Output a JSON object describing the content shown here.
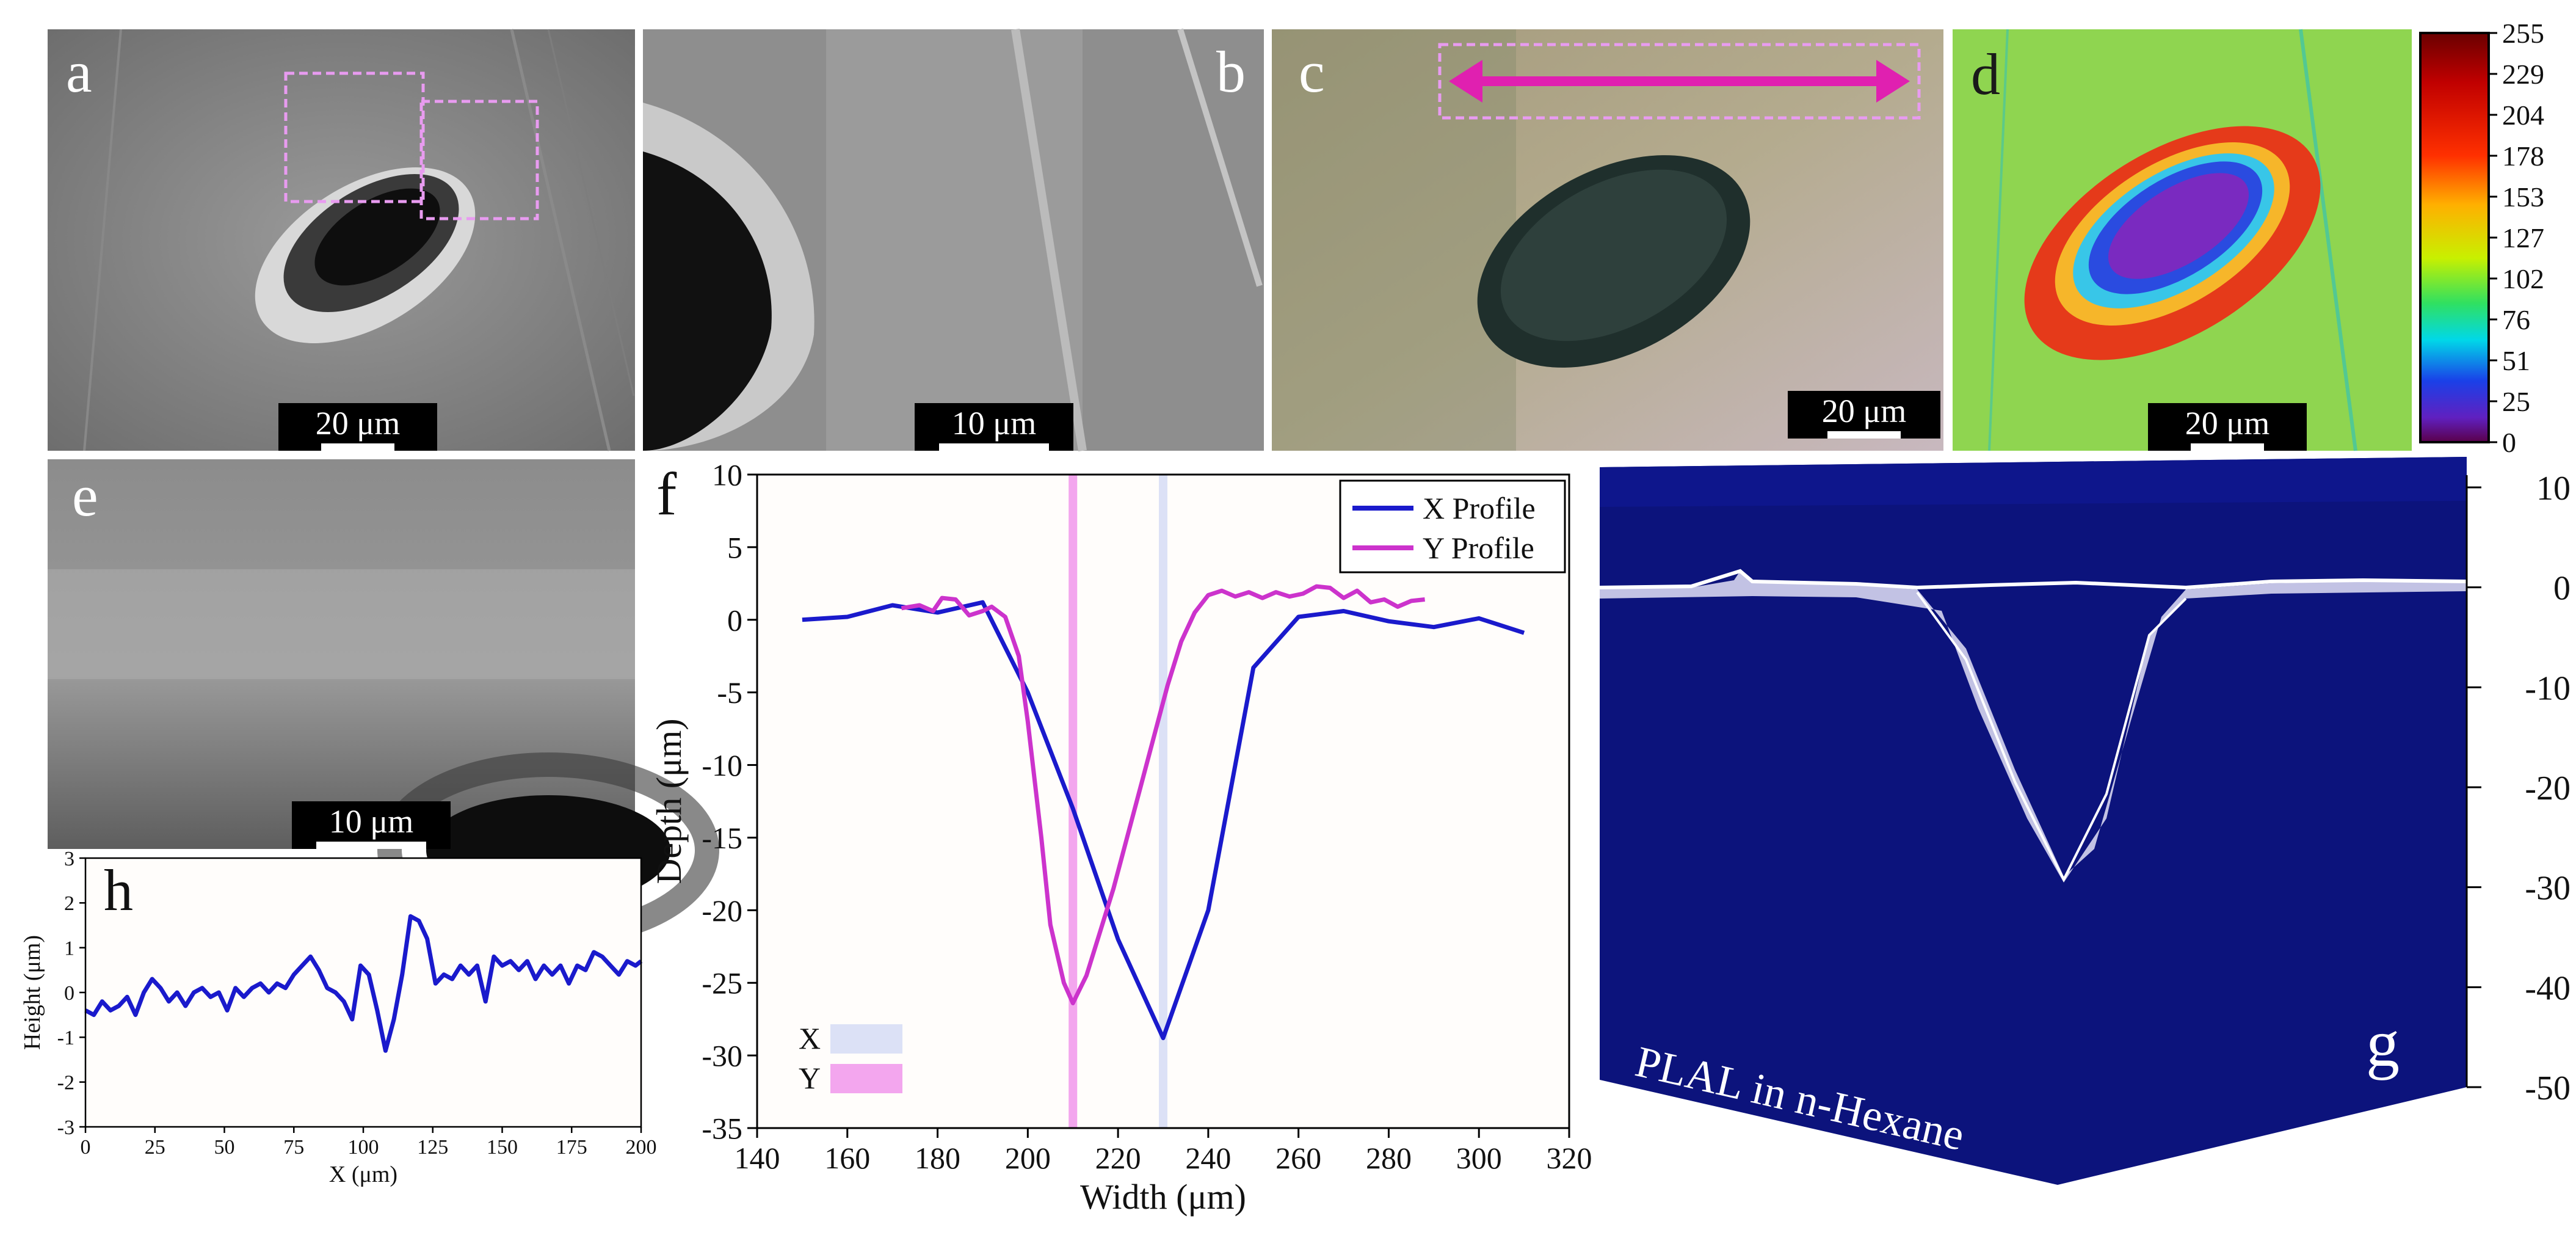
{
  "panels": {
    "a": {
      "label": "a",
      "scale": "20 μm"
    },
    "b": {
      "label": "b",
      "scale": "10 μm"
    },
    "c": {
      "label": "c",
      "scale": "20 μm"
    },
    "d": {
      "label": "d",
      "scale": "20 μm",
      "colorbar_ticks": [
        "255",
        "229",
        "204",
        "178",
        "153",
        "127",
        "102",
        "76",
        "51",
        "25",
        "0"
      ]
    },
    "e": {
      "label": "e",
      "scale": "10 μm"
    },
    "g": {
      "label": "g",
      "caption": "PLAL in n-Hexane",
      "axis_ticks": [
        "10",
        "0",
        "-10",
        "-20",
        "-30",
        "-40",
        "-50"
      ]
    }
  },
  "chart_data": [
    {
      "panel": "f",
      "type": "line",
      "label": "f",
      "xlabel": "Width (μm)",
      "ylabel": "Depth (μm)",
      "xlim": [
        140,
        320
      ],
      "ylim": [
        -35,
        10
      ],
      "xticks": [
        140,
        160,
        180,
        200,
        220,
        240,
        260,
        280,
        300,
        320
      ],
      "yticks": [
        10,
        5,
        0,
        -5,
        -10,
        -15,
        -20,
        -25,
        -30,
        -35
      ],
      "legend_position": "top-right",
      "series": [
        {
          "name": "X Profile",
          "color": "#1a1acc",
          "x": [
            150,
            160,
            170,
            180,
            190,
            200,
            210,
            220,
            230,
            240,
            250,
            260,
            270,
            280,
            290,
            300,
            310
          ],
          "y": [
            0,
            0.2,
            1.0,
            0.5,
            1.2,
            -5,
            -13,
            -22,
            -28.8,
            -20,
            -3.3,
            0.2,
            0.6,
            -0.1,
            -0.5,
            0.1,
            -0.9
          ]
        },
        {
          "name": "Y Profile",
          "color": "#cc33cc",
          "x": [
            172,
            176,
            179,
            181,
            184,
            187,
            190,
            192,
            195,
            198,
            200,
            203,
            205,
            208,
            210,
            213,
            216,
            219,
            222,
            225,
            228,
            231,
            234,
            237,
            240,
            243,
            246,
            249,
            252,
            255,
            258,
            261,
            264,
            267,
            270,
            273,
            276,
            279,
            282,
            285,
            288
          ],
          "y": [
            0.8,
            1.0,
            0.6,
            1.5,
            1.4,
            0.3,
            0.6,
            0.9,
            0.2,
            -2.5,
            -7,
            -15,
            -21,
            -25,
            -26.4,
            -24.5,
            -21.5,
            -18.5,
            -15,
            -11.5,
            -8,
            -4.5,
            -1.5,
            0.5,
            1.7,
            2.0,
            1.6,
            1.9,
            1.5,
            1.9,
            1.6,
            1.8,
            2.3,
            2.2,
            1.5,
            2.0,
            1.2,
            1.4,
            0.9,
            1.3,
            1.4
          ]
        }
      ],
      "bands": [
        {
          "name": "X",
          "x": 230,
          "color": "#dce1f6"
        },
        {
          "name": "Y",
          "x": 210,
          "color": "#f3a6ee"
        }
      ]
    },
    {
      "panel": "h",
      "type": "line",
      "label": "h",
      "xlabel": "X (μm)",
      "ylabel": "Height (μm)",
      "xlim": [
        0,
        200
      ],
      "ylim": [
        -3,
        3
      ],
      "xticks": [
        0,
        25,
        50,
        75,
        100,
        125,
        150,
        175,
        200
      ],
      "yticks": [
        3,
        2,
        1,
        0,
        -1,
        -2,
        -3
      ],
      "series": [
        {
          "name": "",
          "color": "#1a1acc",
          "x": [
            0,
            3,
            6,
            9,
            12,
            15,
            18,
            21,
            24,
            27,
            30,
            33,
            36,
            39,
            42,
            45,
            48,
            51,
            54,
            57,
            60,
            63,
            66,
            69,
            72,
            75,
            78,
            81,
            84,
            87,
            90,
            93,
            96,
            99,
            102,
            105,
            108,
            111,
            114,
            117,
            120,
            123,
            126,
            129,
            132,
            135,
            138,
            141,
            144,
            147,
            150,
            153,
            156,
            159,
            162,
            165,
            168,
            171,
            174,
            177,
            180,
            183,
            186,
            189,
            192,
            195,
            198,
            200
          ],
          "y": [
            -0.4,
            -0.5,
            -0.2,
            -0.4,
            -0.3,
            -0.1,
            -0.5,
            0.0,
            0.3,
            0.1,
            -0.2,
            0.0,
            -0.3,
            0.0,
            0.1,
            -0.1,
            0.0,
            -0.4,
            0.1,
            -0.1,
            0.1,
            0.2,
            0.0,
            0.2,
            0.1,
            0.4,
            0.6,
            0.8,
            0.5,
            0.1,
            0.0,
            -0.2,
            -0.6,
            0.6,
            0.4,
            -0.4,
            -1.3,
            -0.6,
            0.4,
            1.7,
            1.6,
            1.2,
            0.2,
            0.4,
            0.3,
            0.6,
            0.4,
            0.6,
            -0.2,
            0.8,
            0.6,
            0.7,
            0.5,
            0.7,
            0.3,
            0.6,
            0.4,
            0.6,
            0.2,
            0.6,
            0.5,
            0.9,
            0.8,
            0.6,
            0.4,
            0.7,
            0.6,
            0.7
          ]
        }
      ]
    }
  ]
}
